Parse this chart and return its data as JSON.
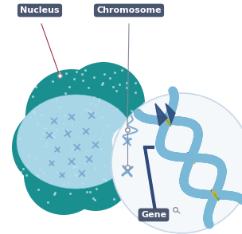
{
  "bg_color": "#ffffff",
  "cell_outer_color": "#1a8f8f",
  "cell_dot_color": "#28aaaa",
  "nucleus_color": "#b8dff0",
  "nucleus_edge_color": "#90c8e0",
  "chr_color": "#7aaad0",
  "zoom_circle_fill": "#dce8f0",
  "zoom_circle_edge": "#ffffff",
  "big_circle_fill": "#f4f8fb",
  "big_circle_edge": "#c8d8e8",
  "dna_blue": "#7ab8d8",
  "dna_dark_blue": "#2d4a7a",
  "dna_orange": "#f5a623",
  "dna_green": "#5db84a",
  "label_bg": "#4a5570",
  "label_fg": "#ffffff",
  "connector_gray": "#888899",
  "nucleus_label": "Nucleus",
  "chromosome_label": "Chromosome",
  "gene_label": "Gene"
}
